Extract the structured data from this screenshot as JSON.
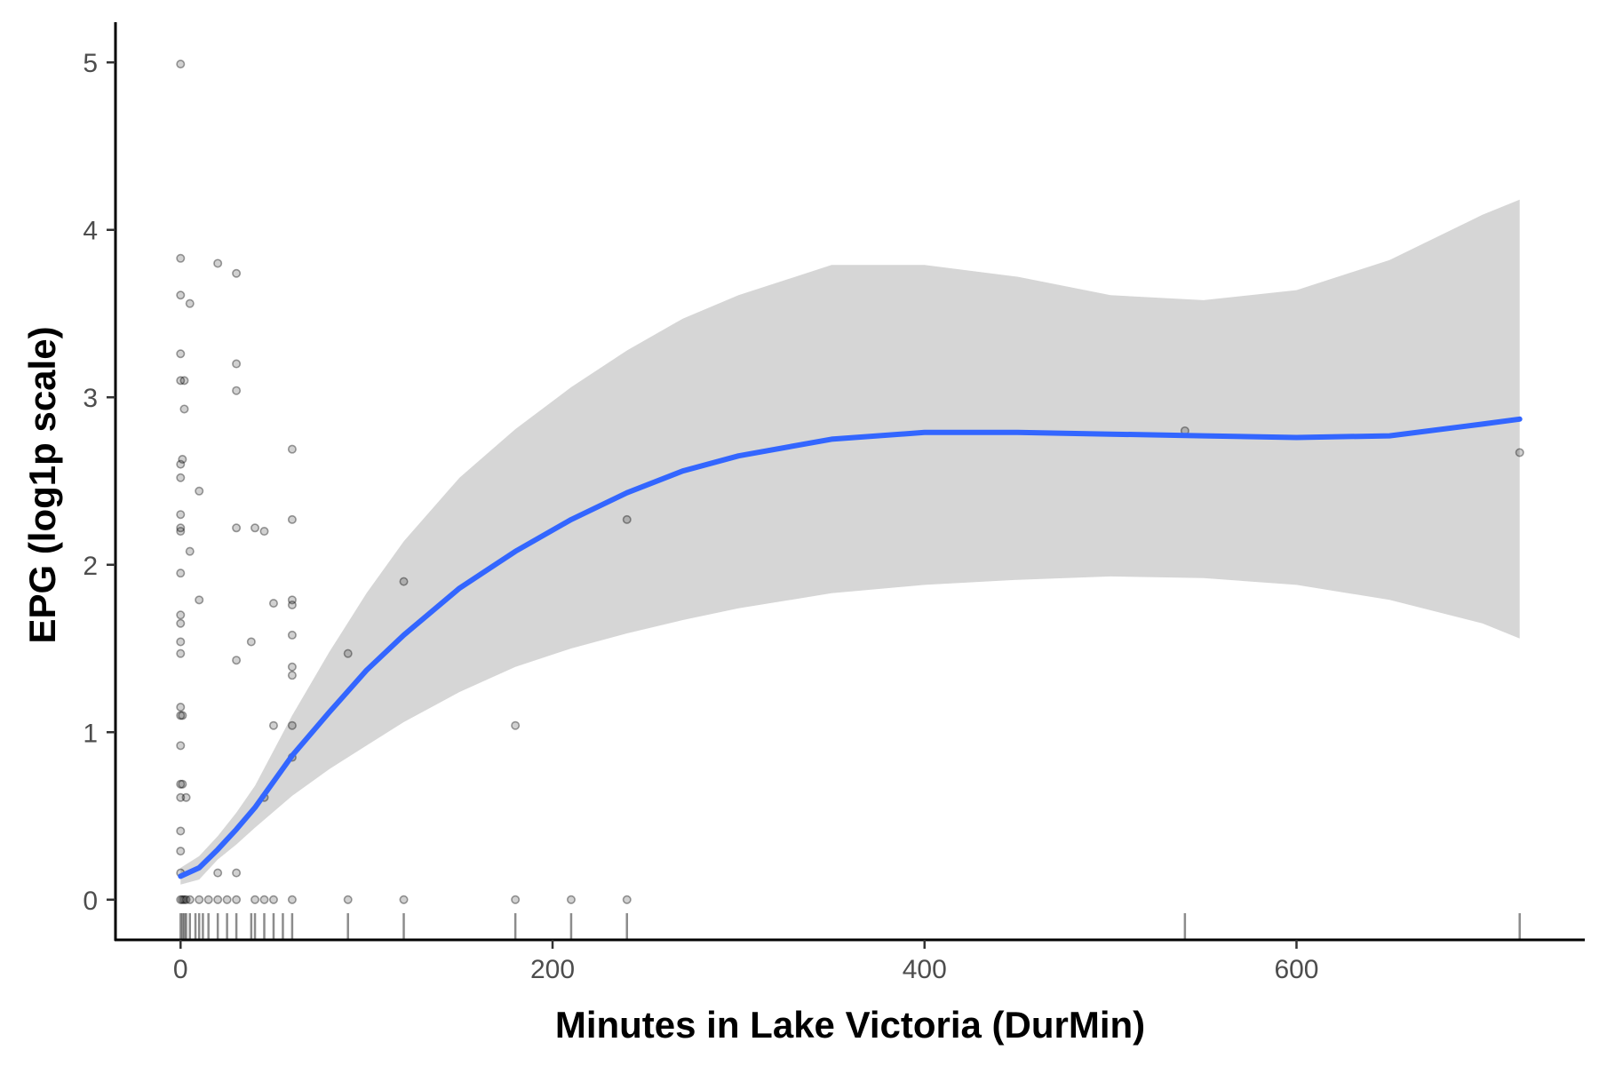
{
  "chart_data": {
    "type": "scatter",
    "title": "",
    "xlabel": "Minutes in Lake Victoria (DurMin)",
    "ylabel": "EPG (log1p scale)",
    "xlim": [
      -35,
      755
    ],
    "ylim": [
      -0.24,
      5.24
    ],
    "x_ticks": [
      0,
      200,
      400,
      600
    ],
    "y_ticks": [
      0,
      1,
      2,
      3,
      4,
      5
    ],
    "grid": false,
    "legend": "none",
    "colors": {
      "points": "#000000",
      "smooth_line": "#3366FF",
      "confidence_band": "#D6D6D6",
      "axis": "#000000",
      "tick_label": "#4D4D4D"
    },
    "points": [
      {
        "x": 0,
        "y": 4.99
      },
      {
        "x": 0,
        "y": 3.83
      },
      {
        "x": 0,
        "y": 3.61
      },
      {
        "x": 0,
        "y": 3.26
      },
      {
        "x": 0,
        "y": 3.1
      },
      {
        "x": 0,
        "y": 2.6
      },
      {
        "x": 0,
        "y": 2.52
      },
      {
        "x": 0,
        "y": 2.3
      },
      {
        "x": 0,
        "y": 2.22
      },
      {
        "x": 0,
        "y": 2.2
      },
      {
        "x": 0,
        "y": 1.95
      },
      {
        "x": 0,
        "y": 1.7
      },
      {
        "x": 0,
        "y": 1.65
      },
      {
        "x": 0,
        "y": 1.54
      },
      {
        "x": 0,
        "y": 1.47
      },
      {
        "x": 0,
        "y": 1.15
      },
      {
        "x": 0,
        "y": 1.1
      },
      {
        "x": 0,
        "y": 0.92
      },
      {
        "x": 0,
        "y": 0.69
      },
      {
        "x": 0,
        "y": 0.61
      },
      {
        "x": 0,
        "y": 0.41
      },
      {
        "x": 0,
        "y": 0.29
      },
      {
        "x": 0,
        "y": 0.16
      },
      {
        "x": 0,
        "y": 0
      },
      {
        "x": 1,
        "y": 2.63
      },
      {
        "x": 1,
        "y": 1.1
      },
      {
        "x": 1,
        "y": 0.69
      },
      {
        "x": 1,
        "y": 0
      },
      {
        "x": 2,
        "y": 3.1
      },
      {
        "x": 2,
        "y": 2.93
      },
      {
        "x": 2,
        "y": 0
      },
      {
        "x": 3,
        "y": 0.61
      },
      {
        "x": 3,
        "y": 0
      },
      {
        "x": 5,
        "y": 3.56
      },
      {
        "x": 5,
        "y": 2.08
      },
      {
        "x": 5,
        "y": 0
      },
      {
        "x": 10,
        "y": 2.44
      },
      {
        "x": 10,
        "y": 1.79
      },
      {
        "x": 10,
        "y": 0
      },
      {
        "x": 15,
        "y": 0
      },
      {
        "x": 20,
        "y": 3.8
      },
      {
        "x": 20,
        "y": 0.16
      },
      {
        "x": 20,
        "y": 0
      },
      {
        "x": 25,
        "y": 0
      },
      {
        "x": 30,
        "y": 3.74
      },
      {
        "x": 30,
        "y": 3.2
      },
      {
        "x": 30,
        "y": 3.04
      },
      {
        "x": 30,
        "y": 2.22
      },
      {
        "x": 30,
        "y": 1.43
      },
      {
        "x": 30,
        "y": 0.16
      },
      {
        "x": 30,
        "y": 0
      },
      {
        "x": 38,
        "y": 1.54
      },
      {
        "x": 40,
        "y": 2.22
      },
      {
        "x": 40,
        "y": 0
      },
      {
        "x": 45,
        "y": 2.2
      },
      {
        "x": 45,
        "y": 0.61
      },
      {
        "x": 45,
        "y": 0
      },
      {
        "x": 50,
        "y": 1.77
      },
      {
        "x": 50,
        "y": 1.04
      },
      {
        "x": 50,
        "y": 0
      },
      {
        "x": 60,
        "y": 2.69
      },
      {
        "x": 60,
        "y": 2.27
      },
      {
        "x": 60,
        "y": 1.79
      },
      {
        "x": 60,
        "y": 1.76
      },
      {
        "x": 60,
        "y": 1.58
      },
      {
        "x": 60,
        "y": 1.39
      },
      {
        "x": 60,
        "y": 1.34
      },
      {
        "x": 60,
        "y": 1.04
      },
      {
        "x": 60,
        "y": 0.85
      },
      {
        "x": 60,
        "y": 0
      },
      {
        "x": 90,
        "y": 1.47
      },
      {
        "x": 90,
        "y": 0
      },
      {
        "x": 120,
        "y": 1.9
      },
      {
        "x": 120,
        "y": 0
      },
      {
        "x": 180,
        "y": 1.04
      },
      {
        "x": 180,
        "y": 0
      },
      {
        "x": 210,
        "y": 0
      },
      {
        "x": 240,
        "y": 2.27
      },
      {
        "x": 240,
        "y": 0
      },
      {
        "x": 540,
        "y": 2.8
      },
      {
        "x": 720,
        "y": 2.67
      }
    ],
    "rug_x": [
      0,
      1,
      2,
      3,
      5,
      8,
      10,
      12,
      15,
      20,
      25,
      30,
      38,
      40,
      45,
      50,
      55,
      60,
      90,
      120,
      180,
      210,
      240,
      540,
      720
    ],
    "smooth": {
      "x": [
        0,
        10,
        20,
        30,
        40,
        60,
        80,
        100,
        120,
        150,
        180,
        210,
        240,
        270,
        300,
        350,
        400,
        450,
        500,
        550,
        600,
        650,
        700,
        720
      ],
      "y": [
        0.14,
        0.19,
        0.3,
        0.42,
        0.55,
        0.86,
        1.12,
        1.37,
        1.58,
        1.86,
        2.08,
        2.27,
        2.43,
        2.56,
        2.65,
        2.75,
        2.79,
        2.79,
        2.78,
        2.77,
        2.76,
        2.77,
        2.84,
        2.87
      ],
      "lower": [
        0.09,
        0.12,
        0.24,
        0.33,
        0.43,
        0.62,
        0.78,
        0.92,
        1.06,
        1.24,
        1.39,
        1.5,
        1.59,
        1.67,
        1.74,
        1.83,
        1.88,
        1.91,
        1.93,
        1.92,
        1.88,
        1.79,
        1.65,
        1.56
      ],
      "upper": [
        0.19,
        0.26,
        0.38,
        0.52,
        0.68,
        1.1,
        1.48,
        1.83,
        2.14,
        2.52,
        2.81,
        3.06,
        3.28,
        3.47,
        3.61,
        3.79,
        3.79,
        3.72,
        3.61,
        3.58,
        3.64,
        3.82,
        4.09,
        4.18
      ]
    }
  }
}
